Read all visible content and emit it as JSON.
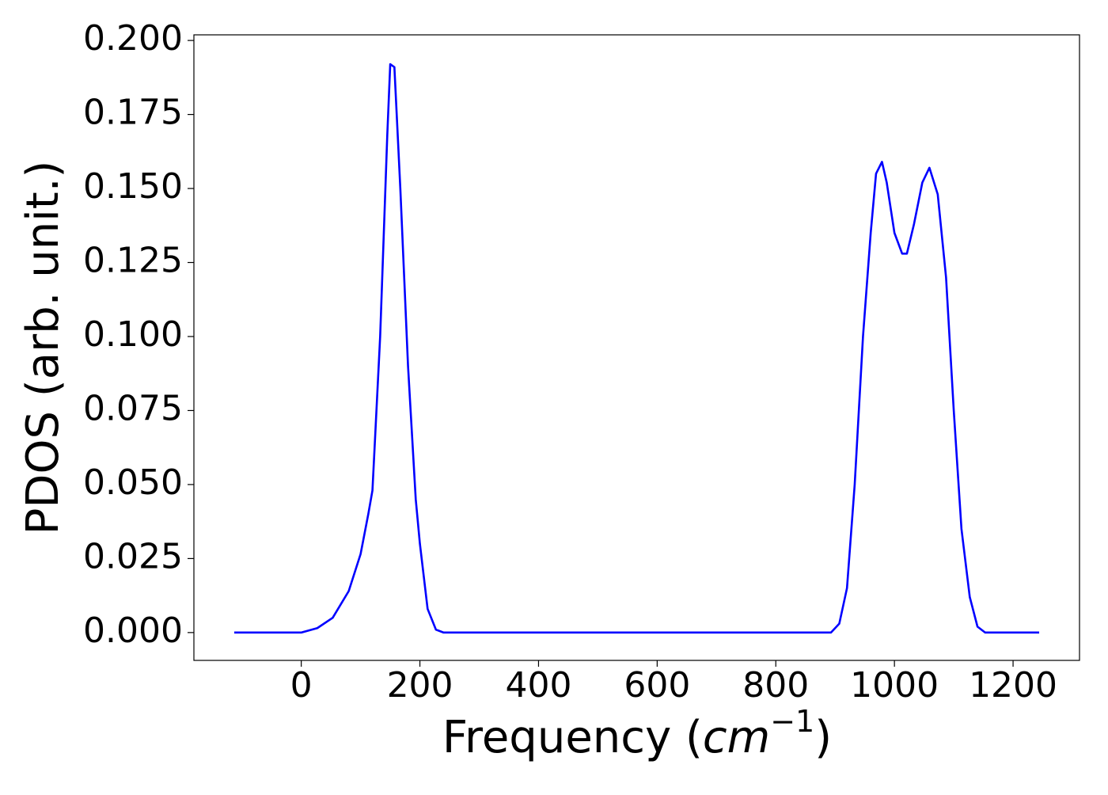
{
  "chart_data": {
    "type": "line",
    "xlabel": {
      "main": "Frequency (",
      "unit": "cm",
      "exponent": "−1",
      "close": ")"
    },
    "ylabel": "PDOS (arb. unit.)",
    "x": [
      -113,
      0,
      27,
      53,
      80,
      100,
      113,
      120,
      133,
      145,
      150,
      157,
      167,
      180,
      193,
      200,
      213,
      227,
      240,
      893,
      907,
      920,
      933,
      947,
      960,
      969,
      979,
      987,
      1000,
      1013,
      1021,
      1033,
      1047,
      1059,
      1073,
      1087,
      1100,
      1113,
      1127,
      1140,
      1153,
      1244
    ],
    "series": [
      {
        "color": "#0000ff",
        "values": [
          0,
          0,
          0.0015,
          0.005,
          0.014,
          0.0265,
          0.04,
          0.048,
          0.1,
          0.168,
          0.192,
          0.191,
          0.15,
          0.09,
          0.045,
          0.03,
          0.008,
          0.001,
          0,
          0,
          0.003,
          0.015,
          0.05,
          0.1,
          0.135,
          0.155,
          0.159,
          0.152,
          0.135,
          0.128,
          0.128,
          0.138,
          0.152,
          0.157,
          0.148,
          0.12,
          0.075,
          0.035,
          0.012,
          0.002,
          0,
          0
        ]
      }
    ],
    "xlim": [
      -181,
      1312
    ],
    "xticks": [
      0,
      200,
      400,
      600,
      800,
      1000,
      1200
    ],
    "ylim": [
      -0.0094,
      0.2019
    ],
    "yticks": [
      {
        "value": 0,
        "label": "0.000"
      },
      {
        "value": 0.025,
        "label": "0.025"
      },
      {
        "value": 0.05,
        "label": "0.050"
      },
      {
        "value": 0.075,
        "label": "0.075"
      },
      {
        "value": 0.1,
        "label": "0.100"
      },
      {
        "value": 0.125,
        "label": "0.125"
      },
      {
        "value": 0.15,
        "label": "0.150"
      },
      {
        "value": 0.175,
        "label": "0.175"
      },
      {
        "value": 0.2,
        "label": "0.200"
      }
    ],
    "grid": false
  }
}
